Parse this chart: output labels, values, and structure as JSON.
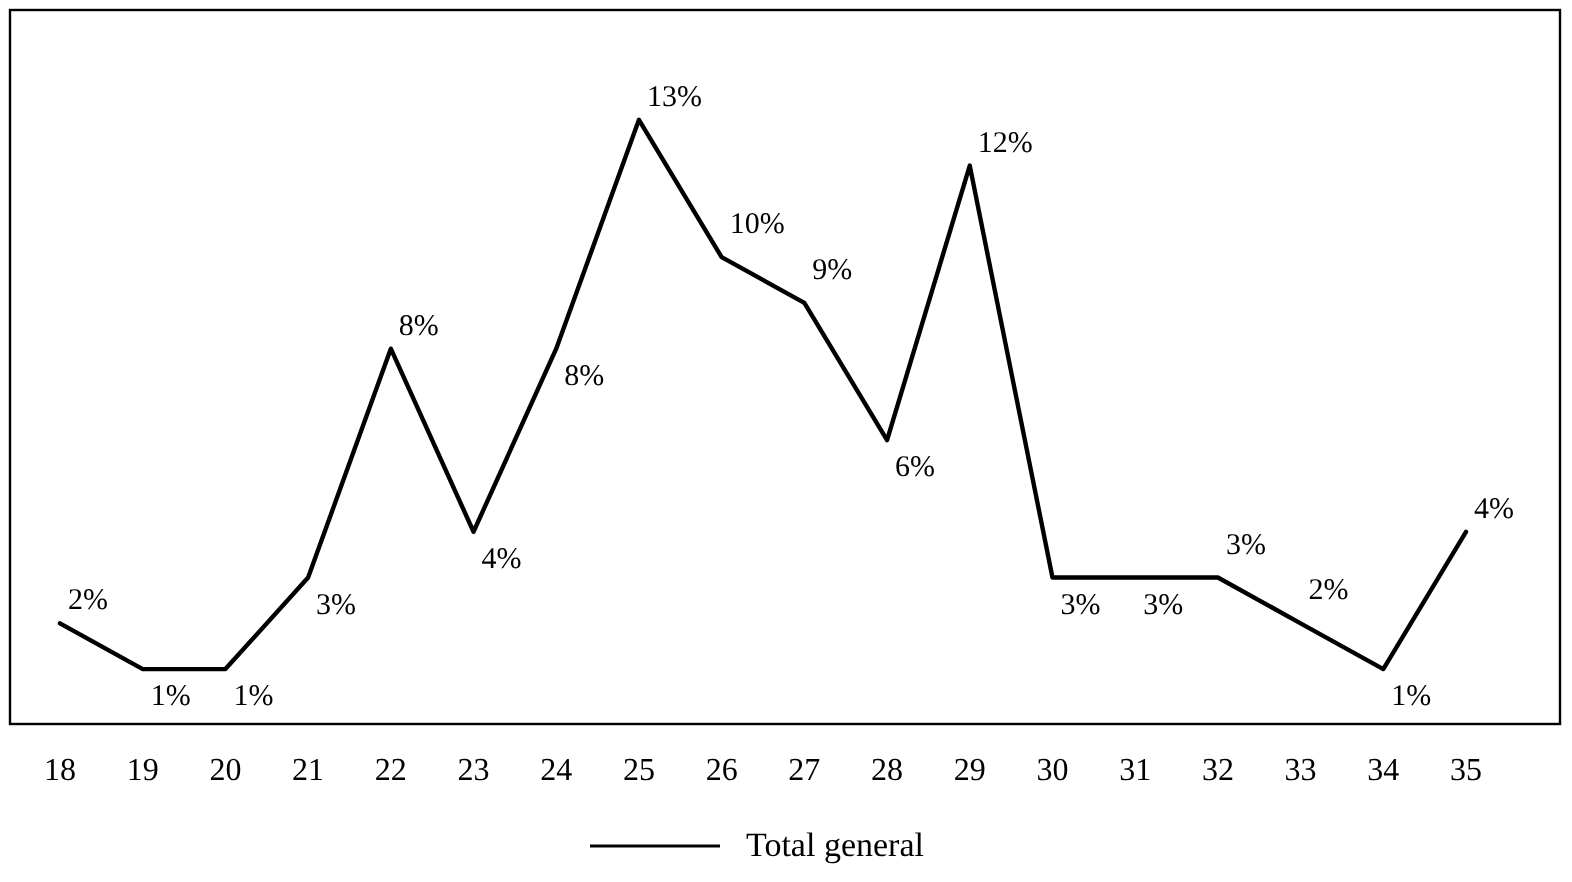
{
  "chart_data": {
    "type": "line",
    "categories": [
      "18",
      "19",
      "20",
      "21",
      "22",
      "23",
      "24",
      "25",
      "26",
      "27",
      "28",
      "29",
      "30",
      "31",
      "32",
      "33",
      "34",
      "35"
    ],
    "series": [
      {
        "name": "Total general",
        "color": "#000000",
        "values": [
          2,
          1,
          1,
          3,
          8,
          4,
          8,
          13,
          10,
          9,
          6,
          12,
          3,
          3,
          3,
          2,
          1,
          4
        ],
        "value_labels": [
          "2%",
          "1%",
          "1%",
          "3%",
          "8%",
          "4%",
          "8%",
          "13%",
          "10%",
          "9%",
          "6%",
          "12%",
          "3%",
          "3%",
          "3%",
          "2%",
          "1%",
          "4%"
        ]
      }
    ],
    "legend": "bottom",
    "marker": "none",
    "line_style": "solid"
  }
}
